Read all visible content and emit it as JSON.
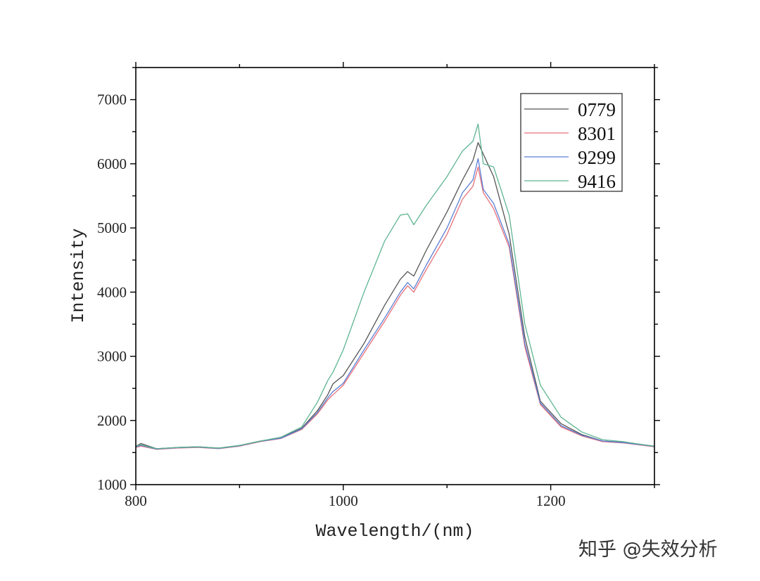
{
  "chart_data": {
    "type": "line",
    "title": "",
    "xlabel": "Wavelength/(nm)",
    "ylabel": "Intensity",
    "xlim": [
      800,
      1300
    ],
    "ylim": [
      1000,
      7500
    ],
    "x_ticks": [
      800,
      1000,
      1200
    ],
    "x_tick_labels": [
      "800",
      "1000",
      "1200"
    ],
    "y_ticks": [
      1000,
      2000,
      3000,
      4000,
      5000,
      6000,
      7000
    ],
    "y_tick_labels": [
      "1000",
      "2000",
      "3000",
      "4000",
      "5000",
      "6000",
      "7000"
    ],
    "grid": false,
    "legend_position": "top-right",
    "x": [
      800,
      805,
      820,
      840,
      860,
      880,
      900,
      920,
      940,
      960,
      975,
      985,
      990,
      1000,
      1020,
      1040,
      1055,
      1062,
      1068,
      1080,
      1100,
      1115,
      1125,
      1130,
      1135,
      1145,
      1160,
      1175,
      1190,
      1210,
      1230,
      1250,
      1270,
      1290,
      1300
    ],
    "series": [
      {
        "name": "0779",
        "color": "#555555",
        "values": [
          1600,
          1640,
          1560,
          1580,
          1590,
          1570,
          1610,
          1680,
          1730,
          1880,
          2150,
          2400,
          2570,
          2700,
          3200,
          3800,
          4200,
          4320,
          4250,
          4650,
          5250,
          5750,
          6050,
          6330,
          6150,
          5800,
          4900,
          3300,
          2300,
          1950,
          1780,
          1680,
          1660,
          1620,
          1600
        ]
      },
      {
        "name": "8301",
        "color": "#e8707a",
        "values": [
          1580,
          1600,
          1550,
          1570,
          1580,
          1560,
          1600,
          1670,
          1720,
          1860,
          2100,
          2320,
          2400,
          2550,
          3050,
          3550,
          3950,
          4100,
          4000,
          4350,
          4900,
          5450,
          5650,
          5950,
          5550,
          5300,
          4700,
          3150,
          2250,
          1900,
          1760,
          1670,
          1650,
          1610,
          1590
        ]
      },
      {
        "name": "9299",
        "color": "#5b7fd4",
        "values": [
          1590,
          1610,
          1555,
          1575,
          1585,
          1565,
          1605,
          1675,
          1725,
          1870,
          2120,
          2350,
          2450,
          2580,
          3100,
          3600,
          4000,
          4150,
          4050,
          4420,
          5000,
          5550,
          5750,
          6080,
          5600,
          5380,
          4750,
          3200,
          2270,
          1920,
          1770,
          1680,
          1655,
          1615,
          1595
        ]
      },
      {
        "name": "9416",
        "color": "#5fb592",
        "values": [
          1600,
          1620,
          1560,
          1580,
          1590,
          1570,
          1610,
          1680,
          1740,
          1900,
          2280,
          2620,
          2750,
          3100,
          4000,
          4800,
          5200,
          5220,
          5050,
          5350,
          5800,
          6200,
          6350,
          6620,
          6000,
          5950,
          5200,
          3500,
          2550,
          2050,
          1820,
          1700,
          1670,
          1620,
          1600
        ]
      }
    ]
  },
  "watermark": "知乎 @失效分析"
}
